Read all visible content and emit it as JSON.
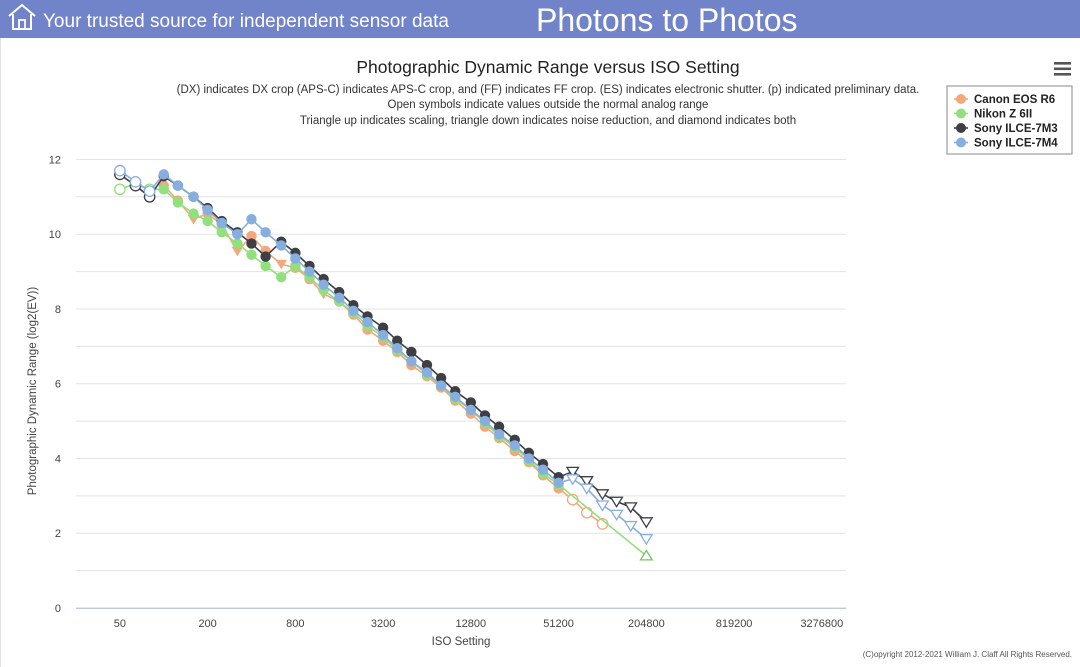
{
  "header": {
    "tagline": "Your trusted source for independent sensor data",
    "brand": "Photons to Photos"
  },
  "chart_data": {
    "type": "line",
    "title": "Photographic Dynamic Range versus ISO Setting",
    "subtitle_lines": [
      "(DX) indicates DX crop (APS-C) indicates APS-C crop, and (FF) indicates FF crop. (ES) indicates electronic shutter. (p) indicated preliminary data.",
      "Open symbols indicate values outside the normal analog range",
      "Triangle up indicates scaling, triangle down indicates noise reduction, and diamond indicates both"
    ],
    "xlabel": "ISO Setting",
    "ylabel": "Photographic Dynamic Range (log2(EV))",
    "x_scale": "log2",
    "xlim": [
      25,
      4800000
    ],
    "x_ticks": [
      50,
      200,
      800,
      3200,
      12800,
      51200,
      204800,
      819200,
      3276800
    ],
    "x_tick_labels": [
      "50",
      "200",
      "800",
      "3200",
      "12800",
      "51200",
      "204800",
      "819200",
      "3276800"
    ],
    "ylim": [
      0,
      12.6
    ],
    "y_ticks": [
      0,
      2,
      4,
      6,
      8,
      10,
      12
    ],
    "y_tick_labels": [
      "0",
      "2",
      "4",
      "6",
      "8",
      "10",
      "12"
    ],
    "grid": true,
    "legend_position": "top-right",
    "menu_icon": "hamburger-menu-icon",
    "copyright": "(C)opyright 2012-2021 William J. Claff All Rights Reserved.",
    "series": [
      {
        "name": "Canon EOS R6",
        "color": "#f4a77a",
        "points": [
          {
            "x": 100,
            "y": 11.3,
            "m": "c"
          },
          {
            "x": 125,
            "y": 10.9,
            "m": "c"
          },
          {
            "x": 160,
            "y": 10.4,
            "m": "v"
          },
          {
            "x": 200,
            "y": 10.55,
            "m": "c"
          },
          {
            "x": 250,
            "y": 10.25,
            "m": "c"
          },
          {
            "x": 320,
            "y": 9.55,
            "m": "v"
          },
          {
            "x": 400,
            "y": 9.95,
            "m": "c"
          },
          {
            "x": 500,
            "y": 9.55,
            "m": "c"
          },
          {
            "x": 640,
            "y": 9.2,
            "m": "v"
          },
          {
            "x": 800,
            "y": 9.1,
            "m": "c"
          },
          {
            "x": 1000,
            "y": 8.8,
            "m": "c"
          },
          {
            "x": 1250,
            "y": 8.4,
            "m": "v"
          },
          {
            "x": 1600,
            "y": 8.2,
            "m": "c"
          },
          {
            "x": 2000,
            "y": 7.85,
            "m": "c"
          },
          {
            "x": 2500,
            "y": 7.45,
            "m": "c"
          },
          {
            "x": 3200,
            "y": 7.15,
            "m": "c"
          },
          {
            "x": 4000,
            "y": 6.85,
            "m": "c"
          },
          {
            "x": 5000,
            "y": 6.5,
            "m": "c"
          },
          {
            "x": 6400,
            "y": 6.2,
            "m": "c"
          },
          {
            "x": 8000,
            "y": 5.9,
            "m": "c"
          },
          {
            "x": 10000,
            "y": 5.55,
            "m": "c"
          },
          {
            "x": 12800,
            "y": 5.2,
            "m": "c"
          },
          {
            "x": 16000,
            "y": 4.85,
            "m": "c"
          },
          {
            "x": 20000,
            "y": 4.55,
            "m": "c"
          },
          {
            "x": 25600,
            "y": 4.2,
            "m": "c"
          },
          {
            "x": 32000,
            "y": 3.9,
            "m": "c"
          },
          {
            "x": 40000,
            "y": 3.55,
            "m": "c"
          },
          {
            "x": 51200,
            "y": 3.2,
            "m": "c"
          },
          {
            "x": 64000,
            "y": 2.9,
            "m": "oc"
          },
          {
            "x": 80000,
            "y": 2.55,
            "m": "oc"
          },
          {
            "x": 102400,
            "y": 2.25,
            "m": "oc"
          }
        ]
      },
      {
        "name": "Nikon Z 6II",
        "color": "#92e07d",
        "points": [
          {
            "x": 50,
            "y": 11.2,
            "m": "oc"
          },
          {
            "x": 64,
            "y": 11.35,
            "m": "oc"
          },
          {
            "x": 80,
            "y": 11.2,
            "m": "oc"
          },
          {
            "x": 100,
            "y": 11.2,
            "m": "c"
          },
          {
            "x": 125,
            "y": 10.85,
            "m": "c"
          },
          {
            "x": 160,
            "y": 10.55,
            "m": "c"
          },
          {
            "x": 200,
            "y": 10.35,
            "m": "c"
          },
          {
            "x": 250,
            "y": 10.05,
            "m": "c"
          },
          {
            "x": 320,
            "y": 9.75,
            "m": "c"
          },
          {
            "x": 400,
            "y": 9.45,
            "m": "c"
          },
          {
            "x": 500,
            "y": 9.15,
            "m": "c"
          },
          {
            "x": 640,
            "y": 8.85,
            "m": "c"
          },
          {
            "x": 800,
            "y": 9.15,
            "m": "c"
          },
          {
            "x": 1000,
            "y": 8.85,
            "m": "c"
          },
          {
            "x": 1250,
            "y": 8.5,
            "m": "c"
          },
          {
            "x": 1600,
            "y": 8.2,
            "m": "c"
          },
          {
            "x": 2000,
            "y": 7.9,
            "m": "c"
          },
          {
            "x": 2500,
            "y": 7.55,
            "m": "c"
          },
          {
            "x": 3200,
            "y": 7.25,
            "m": "c"
          },
          {
            "x": 4000,
            "y": 6.9,
            "m": "c"
          },
          {
            "x": 5000,
            "y": 6.6,
            "m": "c"
          },
          {
            "x": 6400,
            "y": 6.25,
            "m": "c"
          },
          {
            "x": 8000,
            "y": 5.95,
            "m": "c"
          },
          {
            "x": 10000,
            "y": 5.6,
            "m": "c"
          },
          {
            "x": 12800,
            "y": 5.3,
            "m": "c"
          },
          {
            "x": 16000,
            "y": 4.95,
            "m": "c"
          },
          {
            "x": 20000,
            "y": 4.6,
            "m": "c"
          },
          {
            "x": 25600,
            "y": 4.3,
            "m": "c"
          },
          {
            "x": 32000,
            "y": 3.95,
            "m": "c"
          },
          {
            "x": 40000,
            "y": 3.6,
            "m": "c"
          },
          {
            "x": 51200,
            "y": 3.3,
            "m": "c"
          },
          {
            "x": 204800,
            "y": 1.4,
            "m": "t"
          }
        ]
      },
      {
        "name": "Sony ILCE-7M3",
        "color": "#3d3f45",
        "points": [
          {
            "x": 50,
            "y": 11.6,
            "m": "oc"
          },
          {
            "x": 64,
            "y": 11.3,
            "m": "oc"
          },
          {
            "x": 80,
            "y": 11.0,
            "m": "oc"
          },
          {
            "x": 100,
            "y": 11.55,
            "m": "c"
          },
          {
            "x": 125,
            "y": 11.3,
            "m": "c"
          },
          {
            "x": 160,
            "y": 11.0,
            "m": "c"
          },
          {
            "x": 200,
            "y": 10.7,
            "m": "c"
          },
          {
            "x": 250,
            "y": 10.35,
            "m": "c"
          },
          {
            "x": 320,
            "y": 10.05,
            "m": "c"
          },
          {
            "x": 400,
            "y": 9.75,
            "m": "c"
          },
          {
            "x": 500,
            "y": 9.4,
            "m": "c"
          },
          {
            "x": 640,
            "y": 9.8,
            "m": "c"
          },
          {
            "x": 800,
            "y": 9.5,
            "m": "c"
          },
          {
            "x": 1000,
            "y": 9.15,
            "m": "c"
          },
          {
            "x": 1250,
            "y": 8.8,
            "m": "c"
          },
          {
            "x": 1600,
            "y": 8.45,
            "m": "c"
          },
          {
            "x": 2000,
            "y": 8.1,
            "m": "c"
          },
          {
            "x": 2500,
            "y": 7.8,
            "m": "c"
          },
          {
            "x": 3200,
            "y": 7.5,
            "m": "c"
          },
          {
            "x": 4000,
            "y": 7.15,
            "m": "c"
          },
          {
            "x": 5000,
            "y": 6.85,
            "m": "c"
          },
          {
            "x": 6400,
            "y": 6.5,
            "m": "c"
          },
          {
            "x": 8000,
            "y": 6.15,
            "m": "c"
          },
          {
            "x": 10000,
            "y": 5.8,
            "m": "c"
          },
          {
            "x": 12800,
            "y": 5.5,
            "m": "c"
          },
          {
            "x": 16000,
            "y": 5.15,
            "m": "c"
          },
          {
            "x": 20000,
            "y": 4.85,
            "m": "c"
          },
          {
            "x": 25600,
            "y": 4.5,
            "m": "c"
          },
          {
            "x": 32000,
            "y": 4.15,
            "m": "c"
          },
          {
            "x": 40000,
            "y": 3.85,
            "m": "c"
          },
          {
            "x": 51200,
            "y": 3.5,
            "m": "c"
          },
          {
            "x": 64000,
            "y": 3.65,
            "m": "ov"
          },
          {
            "x": 80000,
            "y": 3.4,
            "m": "ov"
          },
          {
            "x": 102400,
            "y": 3.05,
            "m": "ov"
          },
          {
            "x": 128000,
            "y": 2.85,
            "m": "ov"
          },
          {
            "x": 160000,
            "y": 2.7,
            "m": "ov"
          },
          {
            "x": 204800,
            "y": 2.3,
            "m": "ov"
          }
        ]
      },
      {
        "name": "Sony ILCE-7M4",
        "color": "#86aedf",
        "points": [
          {
            "x": 50,
            "y": 11.7,
            "m": "oc"
          },
          {
            "x": 64,
            "y": 11.4,
            "m": "oc"
          },
          {
            "x": 80,
            "y": 11.15,
            "m": "oc"
          },
          {
            "x": 100,
            "y": 11.6,
            "m": "c"
          },
          {
            "x": 125,
            "y": 11.3,
            "m": "c"
          },
          {
            "x": 160,
            "y": 11.0,
            "m": "c"
          },
          {
            "x": 200,
            "y": 10.65,
            "m": "c"
          },
          {
            "x": 250,
            "y": 10.3,
            "m": "c"
          },
          {
            "x": 320,
            "y": 10.0,
            "m": "c"
          },
          {
            "x": 400,
            "y": 10.4,
            "m": "c"
          },
          {
            "x": 500,
            "y": 10.05,
            "m": "c"
          },
          {
            "x": 640,
            "y": 9.7,
            "m": "c"
          },
          {
            "x": 800,
            "y": 9.35,
            "m": "c"
          },
          {
            "x": 1000,
            "y": 9.0,
            "m": "c"
          },
          {
            "x": 1250,
            "y": 8.65,
            "m": "c"
          },
          {
            "x": 1600,
            "y": 8.3,
            "m": "c"
          },
          {
            "x": 2000,
            "y": 7.95,
            "m": "c"
          },
          {
            "x": 2500,
            "y": 7.65,
            "m": "c"
          },
          {
            "x": 3200,
            "y": 7.3,
            "m": "c"
          },
          {
            "x": 4000,
            "y": 6.95,
            "m": "c"
          },
          {
            "x": 5000,
            "y": 6.6,
            "m": "c"
          },
          {
            "x": 6400,
            "y": 6.3,
            "m": "c"
          },
          {
            "x": 8000,
            "y": 5.95,
            "m": "c"
          },
          {
            "x": 10000,
            "y": 5.65,
            "m": "c"
          },
          {
            "x": 12800,
            "y": 5.3,
            "m": "c"
          },
          {
            "x": 16000,
            "y": 5.0,
            "m": "c"
          },
          {
            "x": 20000,
            "y": 4.65,
            "m": "c"
          },
          {
            "x": 25600,
            "y": 4.35,
            "m": "c"
          },
          {
            "x": 32000,
            "y": 4.0,
            "m": "c"
          },
          {
            "x": 40000,
            "y": 3.7,
            "m": "c"
          },
          {
            "x": 51200,
            "y": 3.35,
            "m": "c"
          },
          {
            "x": 64000,
            "y": 3.45,
            "m": "ov"
          },
          {
            "x": 80000,
            "y": 3.2,
            "m": "ov"
          },
          {
            "x": 102400,
            "y": 2.75,
            "m": "ov"
          },
          {
            "x": 128000,
            "y": 2.5,
            "m": "ov"
          },
          {
            "x": 160000,
            "y": 2.2,
            "m": "ov"
          },
          {
            "x": 204800,
            "y": 1.85,
            "m": "ov"
          }
        ]
      }
    ]
  }
}
